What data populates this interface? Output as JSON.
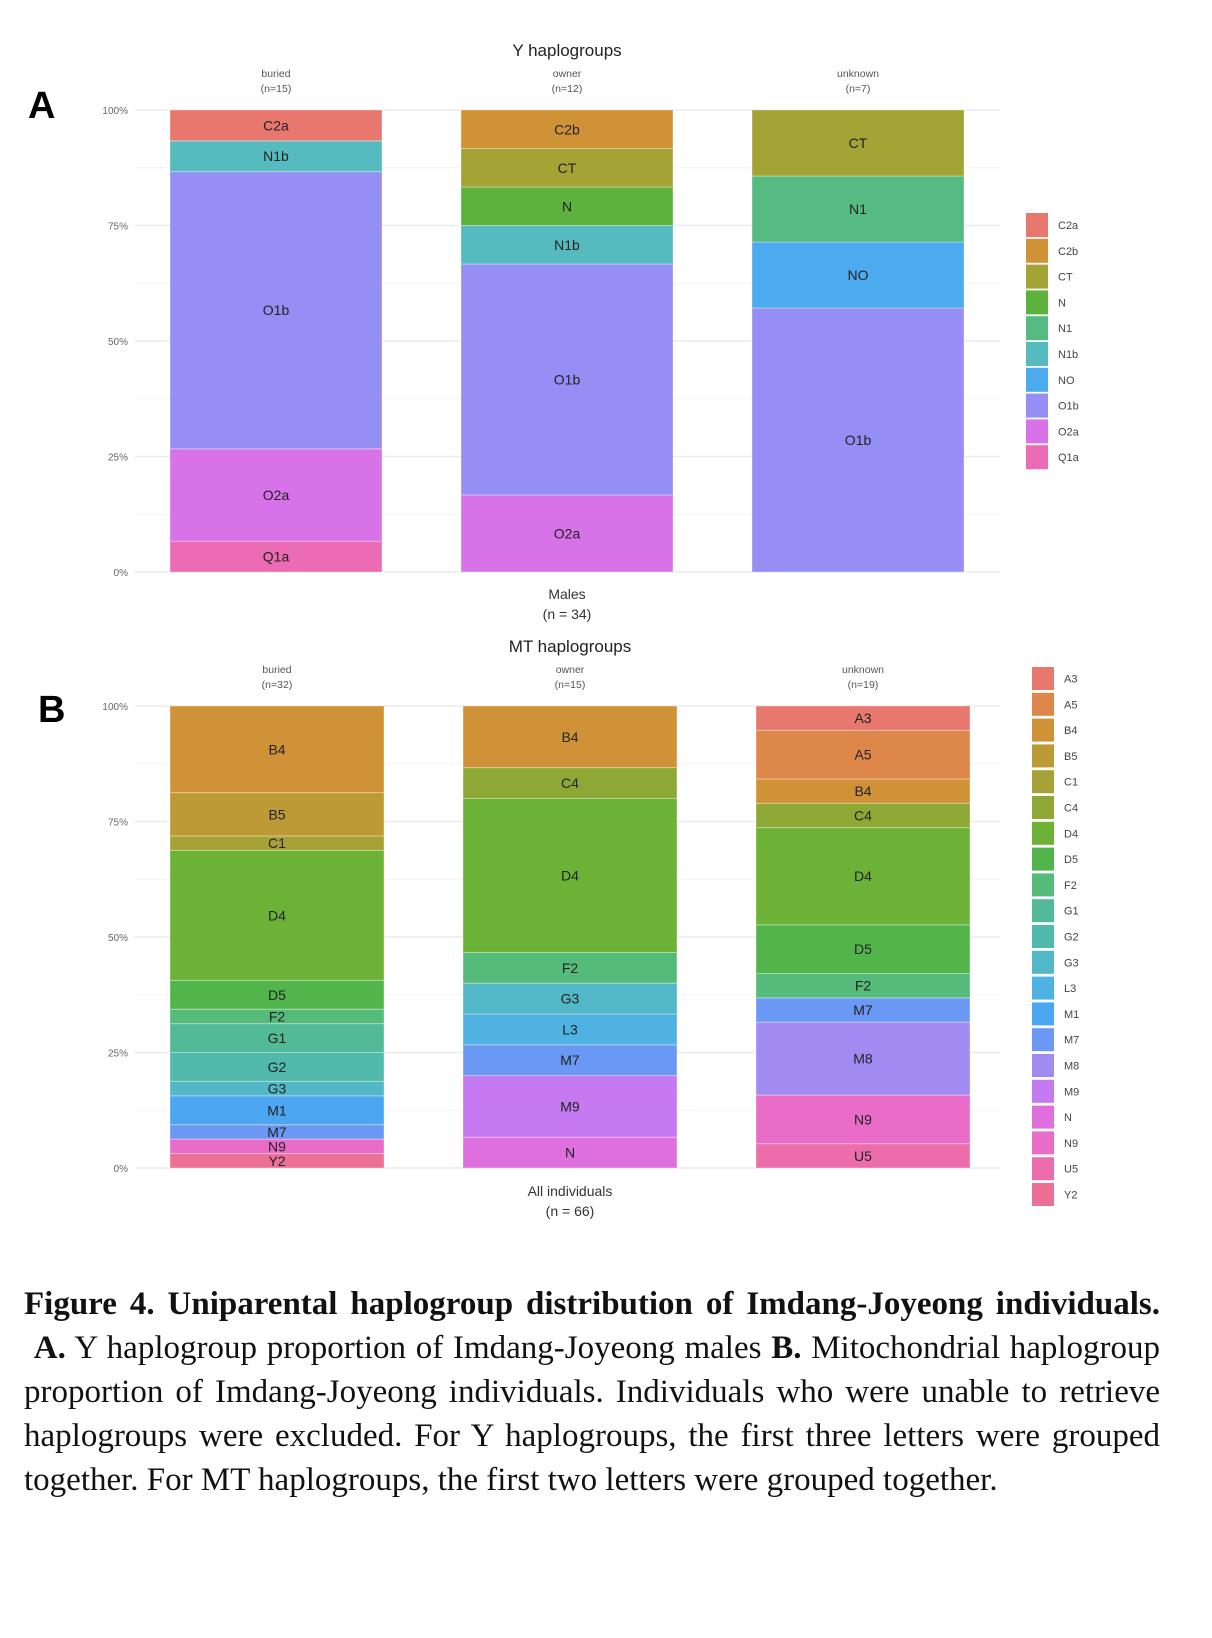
{
  "panels": [
    {
      "letter": "A"
    },
    {
      "letter": "B"
    }
  ],
  "chart_data": [
    {
      "type": "bar",
      "stacked": true,
      "normalized": true,
      "title": "Y haplogroups",
      "xlabel": "Males\n(n = 34)",
      "ylabel": "",
      "ylim": [
        0,
        100
      ],
      "yticks": [
        "0%",
        "25%",
        "50%",
        "75%",
        "100%"
      ],
      "grid": true,
      "legend_position": "right",
      "groups": [
        {
          "name": "buried",
          "n_label": "(n=15)",
          "segments": [
            {
              "label": "Q1a",
              "count": 1
            },
            {
              "label": "O2a",
              "count": 3
            },
            {
              "label": "O1b",
              "count": 9
            },
            {
              "label": "N1b",
              "count": 1
            },
            {
              "label": "C2a",
              "count": 1
            }
          ]
        },
        {
          "name": "owner",
          "n_label": "(n=12)",
          "segments": [
            {
              "label": "O2a",
              "count": 2
            },
            {
              "label": "O1b",
              "count": 6
            },
            {
              "label": "N1b",
              "count": 1
            },
            {
              "label": "N",
              "count": 1
            },
            {
              "label": "CT",
              "count": 1
            },
            {
              "label": "C2b",
              "count": 1
            }
          ]
        },
        {
          "name": "unknown",
          "n_label": "(n=7)",
          "segments": [
            {
              "label": "O1b",
              "count": 4
            },
            {
              "label": "NO",
              "count": 1
            },
            {
              "label": "N1",
              "count": 1
            },
            {
              "label": "CT",
              "count": 1
            }
          ]
        }
      ],
      "legend": [
        {
          "label": "C2a",
          "color": "#e8786e"
        },
        {
          "label": "C2b",
          "color": "#cf9236"
        },
        {
          "label": "CT",
          "color": "#a3a336"
        },
        {
          "label": "N",
          "color": "#5cb23c"
        },
        {
          "label": "N1",
          "color": "#55bb82"
        },
        {
          "label": "N1b",
          "color": "#55bbbf"
        },
        {
          "label": "NO",
          "color": "#4caaee"
        },
        {
          "label": "O1b",
          "color": "#958ef5"
        },
        {
          "label": "O2a",
          "color": "#d772e8"
        },
        {
          "label": "Q1a",
          "color": "#eb6cb5"
        }
      ]
    },
    {
      "type": "bar",
      "stacked": true,
      "normalized": true,
      "title": "MT haplogroups",
      "xlabel": "All individuals\n(n = 66)",
      "ylabel": "",
      "ylim": [
        0,
        100
      ],
      "yticks": [
        "0%",
        "25%",
        "50%",
        "75%",
        "100%"
      ],
      "grid": true,
      "legend_position": "right",
      "groups": [
        {
          "name": "buried",
          "n_label": "(n=32)",
          "segments": [
            {
              "label": "Y2",
              "count": 1
            },
            {
              "label": "N9",
              "count": 1
            },
            {
              "label": "M7",
              "count": 1
            },
            {
              "label": "M1",
              "count": 2
            },
            {
              "label": "G3",
              "count": 1
            },
            {
              "label": "G2",
              "count": 2
            },
            {
              "label": "G1",
              "count": 2
            },
            {
              "label": "F2",
              "count": 1
            },
            {
              "label": "D5",
              "count": 2
            },
            {
              "label": "D4",
              "count": 9
            },
            {
              "label": "C1",
              "count": 1
            },
            {
              "label": "B5",
              "count": 3
            },
            {
              "label": "B4",
              "count": 6
            }
          ]
        },
        {
          "name": "owner",
          "n_label": "(n=15)",
          "segments": [
            {
              "label": "N",
              "count": 1
            },
            {
              "label": "M9",
              "count": 2
            },
            {
              "label": "M7",
              "count": 1
            },
            {
              "label": "L3",
              "count": 1
            },
            {
              "label": "G3",
              "count": 1
            },
            {
              "label": "F2",
              "count": 1
            },
            {
              "label": "D4",
              "count": 5
            },
            {
              "label": "C4",
              "count": 1
            },
            {
              "label": "B4",
              "count": 2
            }
          ]
        },
        {
          "name": "unknown",
          "n_label": "(n=19)",
          "segments": [
            {
              "label": "U5",
              "count": 1
            },
            {
              "label": "N9",
              "count": 2
            },
            {
              "label": "M8",
              "count": 3
            },
            {
              "label": "M7",
              "count": 1
            },
            {
              "label": "F2",
              "count": 1
            },
            {
              "label": "D5",
              "count": 2
            },
            {
              "label": "D4",
              "count": 4
            },
            {
              "label": "C4",
              "count": 1
            },
            {
              "label": "B4",
              "count": 1
            },
            {
              "label": "A5",
              "count": 2
            },
            {
              "label": "A3",
              "count": 1
            }
          ]
        }
      ],
      "legend": [
        {
          "label": "A3",
          "color": "#e8786e"
        },
        {
          "label": "A5",
          "color": "#de874a"
        },
        {
          "label": "B4",
          "color": "#cf9236"
        },
        {
          "label": "B5",
          "color": "#bd9a36"
        },
        {
          "label": "C1",
          "color": "#a7a236"
        },
        {
          "label": "C4",
          "color": "#8ea836"
        },
        {
          "label": "D4",
          "color": "#6cb236"
        },
        {
          "label": "D5",
          "color": "#52b54c"
        },
        {
          "label": "F2",
          "color": "#55bb7a"
        },
        {
          "label": "G1",
          "color": "#52ba96"
        },
        {
          "label": "G2",
          "color": "#52b9ad"
        },
        {
          "label": "G3",
          "color": "#52b7c7"
        },
        {
          "label": "L3",
          "color": "#4fb2e3"
        },
        {
          "label": "M1",
          "color": "#4ca6f2"
        },
        {
          "label": "M7",
          "color": "#6c98f5"
        },
        {
          "label": "M8",
          "color": "#a18af2"
        },
        {
          "label": "M9",
          "color": "#c57af2"
        },
        {
          "label": "N",
          "color": "#df6fdc"
        },
        {
          "label": "N9",
          "color": "#e86cc8"
        },
        {
          "label": "U5",
          "color": "#ec6cac"
        },
        {
          "label": "Y2",
          "color": "#ec7096"
        }
      ]
    }
  ],
  "caption": {
    "bold": "Figure 4. Uniparental haplogroup distribution of Imdang-Joyeong individuals.",
    "a_label": "A.",
    "a_text": "Y haplogroup proportion of Imdang-Joyeong males",
    "b_label": "B.",
    "b_text": "Mitochondrial haplogroup proportion of Imdang-Joyeong individuals. Individuals who were unable to retrieve haplogroups were excluded. For Y haplogroups, the first three letters were grouped together. For MT haplogroups, the first two letters were grouped together."
  }
}
